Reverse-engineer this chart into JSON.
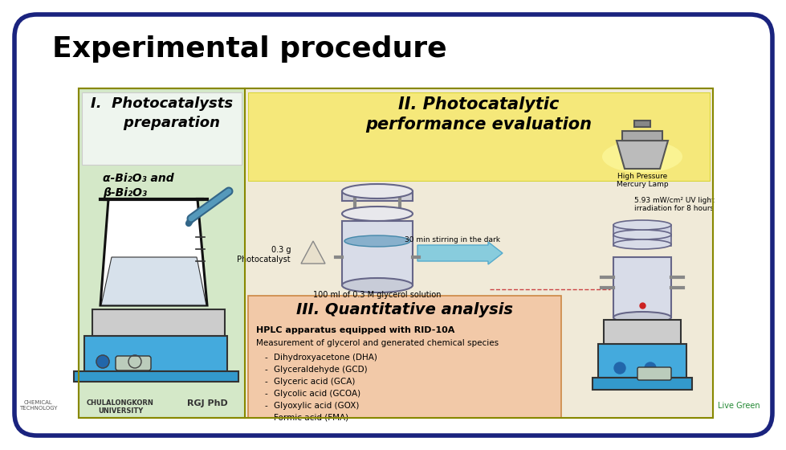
{
  "title": "Experimental procedure",
  "bg_color": "#ffffff",
  "outer_border_color": "#1a237e",
  "main_panel_bg": "#d4e8c8",
  "right_panel_bg": "#f0ead8",
  "section1_header_bg": "#e8f0e8",
  "section2_header_bg": "#f5e87a",
  "section3_bg": "#f2c9a8",
  "section1_title": "I.  Photocatalysts\n    preparation",
  "section2_title": "II. Photocatalytic\nperformance evaluation",
  "section3_title": "III. Quantitative analysis",
  "alpha_text": "α-Bi₂O₃ and",
  "beta_text": "β-Bi₂O₃",
  "photocatalyst_label": "0.3 g\nPhotocatalyst",
  "stirring_label": "30 min stirring in the dark",
  "solution_label": "100 ml of 0.3 M glycerol solution",
  "lamp_label": "High Pressure\nMercury Lamp",
  "irradiation_label": "5.93 mW/cm² UV light\nirradiation for 8 hours",
  "section3_bold": "HPLC apparatus equipped with RID-10A",
  "section3_text": "Measurement of glycerol and generated chemical species",
  "section3_items": [
    "Dihydroxyacetone (DHA)",
    "Glyceraldehyde (GCD)",
    "Glyceric acid (GCA)",
    "Glycolic acid (GCOA)",
    "Glyoxylic acid (GOX)",
    "Formic acid (FMA)"
  ],
  "panel_border_color": "#888800"
}
